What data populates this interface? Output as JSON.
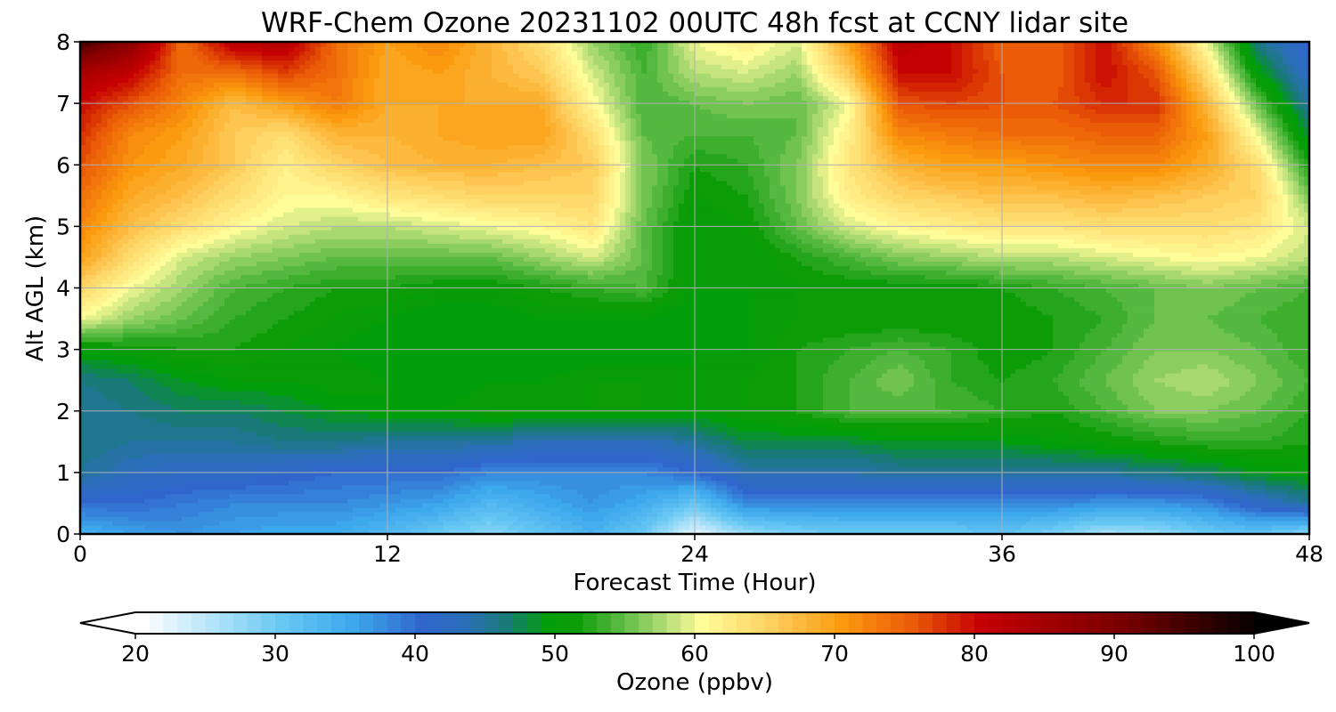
{
  "chart_data": {
    "type": "heatmap",
    "title": "WRF-Chem Ozone  20231102 00UTC 48h fcst at CCNY lidar site",
    "xlabel": "Forecast Time (Hour)",
    "ylabel": "Alt AGL (km)",
    "xlim": [
      0,
      48
    ],
    "ylim": [
      0,
      8
    ],
    "xticks": [
      0,
      12,
      24,
      36,
      48
    ],
    "yticks": [
      0,
      1,
      2,
      3,
      4,
      5,
      6,
      7,
      8
    ],
    "grid": true,
    "x": [
      0,
      2,
      4,
      6,
      8,
      10,
      12,
      14,
      16,
      18,
      20,
      22,
      24,
      26,
      28,
      30,
      32,
      34,
      36,
      38,
      40,
      42,
      44,
      46,
      48
    ],
    "y": [
      0,
      0.5,
      1,
      1.5,
      2,
      2.5,
      3,
      3.5,
      4,
      4.5,
      5,
      5.5,
      6,
      6.5,
      7,
      7.5,
      8
    ],
    "z_units": "ppbv",
    "z": [
      [
        34,
        36,
        37,
        36,
        35,
        35,
        33,
        30,
        28,
        31,
        34,
        30,
        22,
        27,
        29,
        30,
        30,
        30,
        31,
        29,
        26,
        27,
        30,
        31,
        28
      ],
      [
        40,
        40,
        39,
        38,
        38,
        38,
        37,
        36,
        33,
        35,
        37,
        35,
        31,
        38,
        38,
        38,
        38,
        38,
        38,
        38,
        37,
        37,
        38,
        42,
        45
      ],
      [
        45,
        43,
        42,
        42,
        41,
        40,
        40,
        40,
        38,
        38,
        38,
        38,
        40,
        44,
        44,
        44,
        45,
        45,
        45,
        45,
        45,
        46,
        47,
        49,
        50
      ],
      [
        46,
        45,
        45,
        45,
        46,
        46,
        45,
        45,
        45,
        43,
        43,
        43,
        45,
        48,
        48,
        48,
        49,
        49,
        49,
        50,
        51,
        52,
        53,
        53,
        52
      ],
      [
        45,
        46,
        47,
        47,
        48,
        49,
        50,
        50,
        51,
        51,
        51,
        51,
        50,
        51,
        52,
        54,
        54,
        54,
        53,
        52,
        54,
        56,
        56,
        55,
        53
      ],
      [
        46,
        47,
        49,
        50,
        50,
        51,
        50,
        49,
        50,
        50,
        51,
        51,
        50,
        51,
        52,
        54,
        56,
        53,
        52,
        53,
        55,
        57,
        58,
        56,
        54
      ],
      [
        50,
        51,
        52,
        52,
        51,
        50,
        49,
        49,
        49,
        49,
        49,
        49,
        50,
        50,
        52,
        53,
        54,
        53,
        51,
        52,
        54,
        56,
        56,
        55,
        53
      ],
      [
        60,
        57,
        55,
        53,
        52,
        51,
        50,
        49,
        49,
        50,
        50,
        50,
        49,
        50,
        51,
        51,
        51,
        51,
        51,
        52,
        53,
        55,
        55,
        54,
        53
      ],
      [
        65,
        60,
        57,
        54,
        53,
        52,
        52,
        51,
        51,
        52,
        53,
        54,
        50,
        50,
        51,
        51,
        51,
        51,
        52,
        53,
        54,
        55,
        56,
        55,
        54
      ],
      [
        70,
        64,
        59,
        57,
        56,
        55,
        55,
        55,
        55,
        57,
        59,
        55,
        50,
        50,
        52,
        54,
        56,
        57,
        58,
        58,
        59,
        60,
        61,
        60,
        58
      ],
      [
        72,
        67,
        64,
        61,
        59,
        58,
        58,
        59,
        60,
        61,
        63,
        55,
        50,
        51,
        55,
        59,
        61,
        62,
        63,
        63,
        64,
        64,
        64,
        63,
        59
      ],
      [
        74,
        69,
        67,
        64,
        61,
        61,
        63,
        64,
        65,
        65,
        65,
        56,
        51,
        52,
        56,
        62,
        65,
        66,
        67,
        67,
        68,
        67,
        66,
        65,
        56
      ],
      [
        76,
        71,
        69,
        66,
        62,
        65,
        67,
        68,
        68,
        67,
        66,
        56,
        52,
        53,
        56,
        63,
        68,
        70,
        70,
        71,
        72,
        72,
        69,
        64,
        52
      ],
      [
        78,
        72,
        70,
        66,
        64,
        68,
        68,
        69,
        70,
        70,
        64,
        55,
        54,
        54,
        55,
        62,
        72,
        73,
        74,
        74,
        75,
        75,
        70,
        60,
        48
      ],
      [
        80,
        76,
        72,
        67,
        70,
        73,
        69,
        69,
        69,
        69,
        61,
        54,
        55,
        56,
        55,
        60,
        76,
        77,
        76,
        76,
        78,
        78,
        68,
        55,
        45
      ],
      [
        84,
        81,
        74,
        74,
        77,
        74,
        69,
        70,
        68,
        66,
        59,
        54,
        58,
        59,
        57,
        66,
        80,
        80,
        76,
        75,
        80,
        76,
        64,
        50,
        42
      ],
      [
        95,
        88,
        74,
        82,
        83,
        74,
        70,
        72,
        68,
        64,
        57,
        53,
        60,
        62,
        59,
        70,
        82,
        80,
        75,
        75,
        80,
        72,
        60,
        46,
        40
      ]
    ],
    "colorbar": {
      "label": "Ozone  (ppbv)",
      "min": 20,
      "max": 100,
      "ticks": [
        20,
        30,
        40,
        50,
        60,
        70,
        80,
        90,
        100
      ],
      "extend": "both",
      "orientation": "horizontal",
      "stops": [
        {
          "v": 20,
          "c": "#ffffff"
        },
        {
          "v": 30,
          "c": "#68c8f4"
        },
        {
          "v": 35,
          "c": "#3da8ec"
        },
        {
          "v": 40,
          "c": "#3066cc"
        },
        {
          "v": 43,
          "c": "#2a6eb8"
        },
        {
          "v": 46,
          "c": "#1a7a7a"
        },
        {
          "v": 49,
          "c": "#009e0a"
        },
        {
          "v": 51,
          "c": "#0c9c08"
        },
        {
          "v": 54,
          "c": "#55b840"
        },
        {
          "v": 57,
          "c": "#a8d870"
        },
        {
          "v": 60,
          "c": "#fffc9a"
        },
        {
          "v": 65,
          "c": "#fed060"
        },
        {
          "v": 70,
          "c": "#fb9a0e"
        },
        {
          "v": 75,
          "c": "#eb5c08"
        },
        {
          "v": 80,
          "c": "#c40000"
        },
        {
          "v": 90,
          "c": "#7a0000"
        },
        {
          "v": 100,
          "c": "#000000"
        }
      ]
    }
  }
}
